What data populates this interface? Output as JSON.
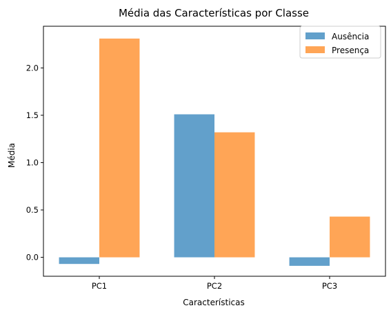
{
  "chart_data": {
    "type": "bar",
    "title": "Média das Características por Classe",
    "xlabel": "Características",
    "ylabel": "Média",
    "categories": [
      "PC1",
      "PC2",
      "PC3"
    ],
    "series": [
      {
        "name": "Ausência",
        "values": [
          -0.07,
          1.51,
          -0.09
        ],
        "color": "#62a0cb"
      },
      {
        "name": "Presença",
        "values": [
          2.31,
          1.32,
          0.43
        ],
        "color": "#ffa556"
      }
    ],
    "ylim": [
      -0.2,
      2.44
    ],
    "yticks": [
      0.0,
      0.5,
      1.0,
      1.5,
      2.0
    ],
    "ytick_labels": [
      "0.0",
      "0.5",
      "1.0",
      "1.5",
      "2.0"
    ],
    "grid": false,
    "legend_position": "top-right"
  }
}
